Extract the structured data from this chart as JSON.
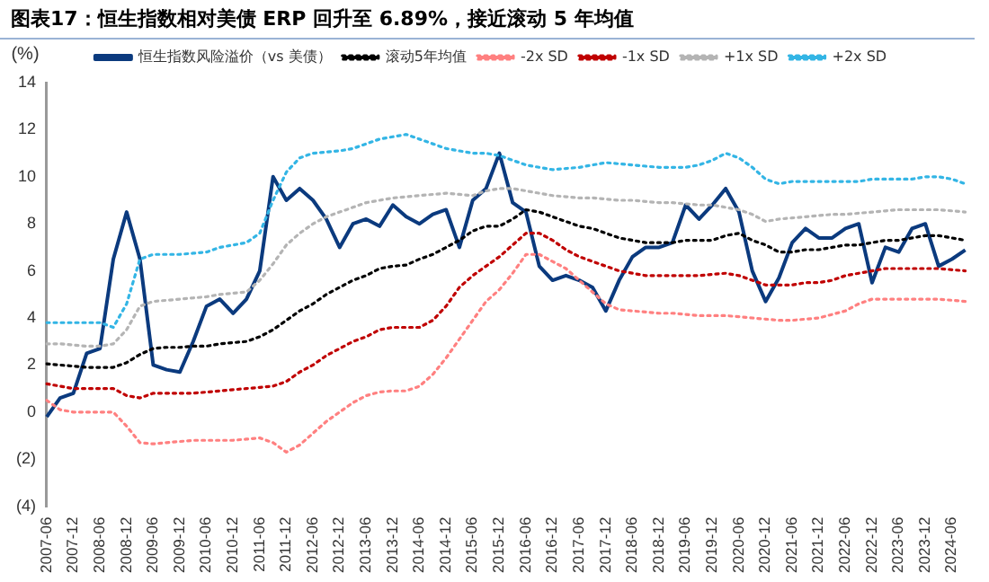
{
  "chart_data": {
    "type": "line",
    "title": "图表17：恒生指数相对美债 ERP 回升至 6.89%，接近滚动 5 年均值",
    "ylabel": "(%)",
    "categories": [
      "2007-06",
      null,
      "2007-12",
      null,
      "2008-06",
      null,
      "2008-12",
      null,
      "2009-06",
      null,
      "2009-12",
      null,
      "2010-06",
      null,
      "2010-12",
      null,
      "2011-06",
      null,
      "2011-12",
      null,
      "2012-06",
      null,
      "2012-12",
      null,
      "2013-06",
      null,
      "2013-12",
      null,
      "2014-06",
      null,
      "2014-12",
      null,
      "2015-06",
      null,
      "2015-12",
      null,
      "2016-06",
      null,
      "2016-12",
      null,
      "2017-06",
      null,
      "2017-12",
      null,
      "2018-06",
      null,
      "2018-12",
      null,
      "2019-06",
      null,
      "2019-12",
      null,
      "2020-06",
      null,
      "2020-12",
      null,
      "2021-06",
      null,
      "2021-12",
      null,
      "2022-06",
      null,
      "2022-12",
      null,
      "2023-06",
      null,
      "2023-12",
      null,
      "2024-06",
      null
    ],
    "ylim": [
      -4,
      14
    ],
    "yticks": [
      {
        "value": -4,
        "label": "(4)"
      },
      {
        "value": -2,
        "label": "(2)"
      },
      0,
      2,
      4,
      6,
      8,
      10,
      12,
      14
    ],
    "grid": false,
    "legend": "top",
    "marker": "none",
    "series": [
      {
        "name": "恒生指数风险溢价（vs 美债）",
        "color": "#0b3a7e",
        "line_style": "solid",
        "values": [
          -0.2,
          0.6,
          0.8,
          2.5,
          2.7,
          6.5,
          8.5,
          6.5,
          2.0,
          1.8,
          1.7,
          3.0,
          4.5,
          4.8,
          4.2,
          4.8,
          6.0,
          10.0,
          9.0,
          9.5,
          9.0,
          8.2,
          7.0,
          8.0,
          8.2,
          7.9,
          8.8,
          8.3,
          8.0,
          8.4,
          8.6,
          7.0,
          9.0,
          9.5,
          11.0,
          8.9,
          8.5,
          6.2,
          5.6,
          5.8,
          5.6,
          5.3,
          4.3,
          5.6,
          6.6,
          7.0,
          7.0,
          7.2,
          8.8,
          8.2,
          8.8,
          9.5,
          8.5,
          6.0,
          4.7,
          5.7,
          7.2,
          7.8,
          7.4,
          7.4,
          7.8,
          8.0,
          5.5,
          7.0,
          6.8,
          7.8,
          8.0,
          6.2,
          6.5,
          6.89
        ]
      },
      {
        "name": "滚动5年均值",
        "color": "#000000",
        "line_style": "dotted",
        "values": [
          2.05,
          2.0,
          1.95,
          1.9,
          1.9,
          1.9,
          2.1,
          2.45,
          2.7,
          2.75,
          2.75,
          2.8,
          2.8,
          2.9,
          2.95,
          3.0,
          3.2,
          3.5,
          3.9,
          4.3,
          4.6,
          5.0,
          5.3,
          5.6,
          5.8,
          6.1,
          6.2,
          6.25,
          6.5,
          6.7,
          7.0,
          7.3,
          7.7,
          7.9,
          7.9,
          8.2,
          8.6,
          8.5,
          8.3,
          8.1,
          7.9,
          7.8,
          7.6,
          7.4,
          7.3,
          7.2,
          7.2,
          7.2,
          7.3,
          7.3,
          7.3,
          7.5,
          7.6,
          7.3,
          7.1,
          6.8,
          6.8,
          6.9,
          6.9,
          7.0,
          7.1,
          7.1,
          7.2,
          7.3,
          7.3,
          7.4,
          7.5,
          7.5,
          7.4,
          7.3
        ]
      },
      {
        "name": "-2x SD",
        "color": "#ff8080",
        "line_style": "dotted",
        "values": [
          0.5,
          0.1,
          0,
          0,
          0,
          0,
          -0.6,
          -1.3,
          -1.35,
          -1.3,
          -1.25,
          -1.2,
          -1.2,
          -1.2,
          -1.2,
          -1.15,
          -1.1,
          -1.3,
          -1.7,
          -1.4,
          -0.9,
          -0.4,
          0,
          0.4,
          0.7,
          0.85,
          0.9,
          0.9,
          1.1,
          1.6,
          2.3,
          3.1,
          3.9,
          4.7,
          5.2,
          5.9,
          6.7,
          6.7,
          6.4,
          6.1,
          5.6,
          5.1,
          4.6,
          4.35,
          4.3,
          4.25,
          4.2,
          4.2,
          4.15,
          4.1,
          4.1,
          4.1,
          4.05,
          4.0,
          3.95,
          3.9,
          3.9,
          3.95,
          4.0,
          4.15,
          4.3,
          4.6,
          4.8,
          4.8,
          4.8,
          4.8,
          4.8,
          4.8,
          4.75,
          4.7
        ]
      },
      {
        "name": "-1x SD",
        "color": "#c00000",
        "line_style": "dotted",
        "values": [
          1.2,
          1.1,
          1.0,
          1.0,
          1.0,
          1.0,
          0.7,
          0.6,
          0.8,
          0.8,
          0.8,
          0.8,
          0.85,
          0.9,
          0.95,
          1.0,
          1.05,
          1.1,
          1.3,
          1.7,
          2.0,
          2.4,
          2.7,
          3.0,
          3.2,
          3.5,
          3.6,
          3.6,
          3.6,
          3.9,
          4.5,
          5.3,
          5.8,
          6.2,
          6.6,
          7.1,
          7.6,
          7.6,
          7.3,
          6.9,
          6.6,
          6.4,
          6.2,
          6.0,
          5.9,
          5.8,
          5.8,
          5.8,
          5.8,
          5.8,
          5.85,
          5.9,
          5.8,
          5.6,
          5.4,
          5.4,
          5.4,
          5.5,
          5.5,
          5.6,
          5.8,
          5.9,
          6.0,
          6.1,
          6.1,
          6.1,
          6.1,
          6.1,
          6.05,
          6.0
        ]
      },
      {
        "name": "+1x SD",
        "color": "#b4b4b4",
        "line_style": "dotted",
        "values": [
          2.9,
          2.9,
          2.85,
          2.8,
          2.8,
          2.9,
          3.5,
          4.5,
          4.7,
          4.75,
          4.8,
          4.85,
          4.9,
          5.0,
          5.05,
          5.1,
          5.6,
          6.3,
          7.1,
          7.6,
          8.0,
          8.3,
          8.5,
          8.7,
          8.9,
          9.0,
          9.1,
          9.15,
          9.2,
          9.25,
          9.3,
          9.25,
          9.2,
          9.4,
          9.5,
          9.5,
          9.4,
          9.3,
          9.2,
          9.15,
          9.1,
          9.1,
          9.05,
          9.0,
          9.0,
          8.95,
          8.9,
          8.9,
          8.85,
          8.8,
          8.8,
          8.7,
          8.6,
          8.4,
          8.1,
          8.2,
          8.25,
          8.3,
          8.35,
          8.4,
          8.4,
          8.45,
          8.5,
          8.55,
          8.6,
          8.6,
          8.6,
          8.6,
          8.55,
          8.5
        ]
      },
      {
        "name": "+2x SD",
        "color": "#33b5e5",
        "line_style": "dotted",
        "values": [
          3.8,
          3.8,
          3.8,
          3.8,
          3.8,
          3.6,
          4.6,
          6.5,
          6.7,
          6.7,
          6.7,
          6.75,
          6.8,
          7.0,
          7.1,
          7.2,
          7.6,
          9.0,
          10.2,
          10.8,
          11.0,
          11.05,
          11.1,
          11.2,
          11.4,
          11.6,
          11.7,
          11.8,
          11.6,
          11.4,
          11.2,
          11.1,
          11.0,
          11.0,
          10.9,
          10.7,
          10.5,
          10.4,
          10.3,
          10.35,
          10.4,
          10.5,
          10.6,
          10.55,
          10.5,
          10.45,
          10.4,
          10.4,
          10.4,
          10.5,
          10.7,
          11.0,
          10.8,
          10.4,
          9.9,
          9.7,
          9.8,
          9.8,
          9.8,
          9.8,
          9.8,
          9.8,
          9.9,
          9.9,
          9.9,
          9.9,
          10.0,
          10.0,
          9.9,
          9.7
        ]
      }
    ]
  }
}
